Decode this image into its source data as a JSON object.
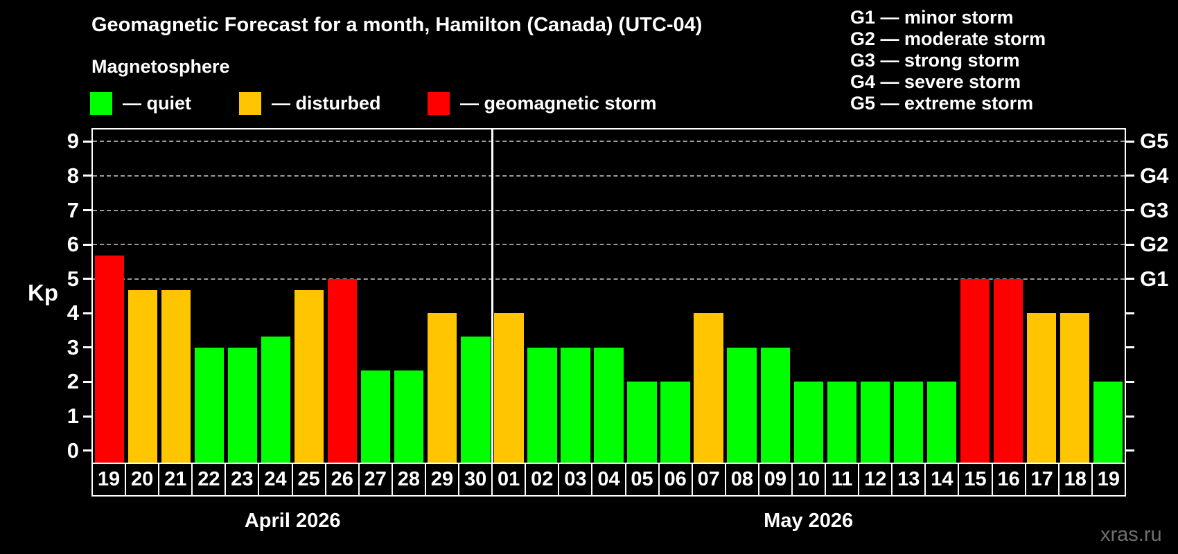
{
  "header": {
    "title": "Geomagnetic Forecast for a month, Hamilton (Canada) (UTC-04)"
  },
  "legend": {
    "title": "Magnetosphere",
    "colors": {
      "quiet": "#00ff00",
      "disturbed": "#ffc600",
      "storm": "#ff0000"
    },
    "items": [
      {
        "status": "quiet",
        "label": "— quiet"
      },
      {
        "status": "disturbed",
        "label": "— disturbed"
      },
      {
        "status": "storm",
        "label": "— geomagnetic storm"
      }
    ]
  },
  "g_legend": {
    "lines": [
      "G1 — minor storm",
      "G2 — moderate storm",
      "G3 — strong storm",
      "G4 — severe storm",
      "G5 — extreme storm"
    ]
  },
  "watermark": "xras.ru",
  "chart_data": {
    "type": "bar",
    "title": "Geomagnetic Forecast for a month, Hamilton (Canada) (UTC-04)",
    "xlabel": "",
    "ylabel": "Kp",
    "ylim": [
      0,
      9
    ],
    "y_ticks": [
      0,
      1,
      2,
      3,
      4,
      5,
      6,
      7,
      8,
      9
    ],
    "grid": "dashed horizontal lines at Kp 5 to 9 only",
    "legend_position": "top",
    "g_levels": [
      {
        "label": "G1",
        "kp": 5
      },
      {
        "label": "G2",
        "kp": 6
      },
      {
        "label": "G3",
        "kp": 7
      },
      {
        "label": "G4",
        "kp": 8
      },
      {
        "label": "G5",
        "kp": 9
      }
    ],
    "months": [
      {
        "label": "April 2026",
        "days": 12
      },
      {
        "label": "May 2026",
        "days": 19
      }
    ],
    "days": [
      {
        "month": "April 2026",
        "day": "19",
        "kp": 5.67,
        "status": "storm"
      },
      {
        "month": "April 2026",
        "day": "20",
        "kp": 4.67,
        "status": "disturbed"
      },
      {
        "month": "April 2026",
        "day": "21",
        "kp": 4.67,
        "status": "disturbed"
      },
      {
        "month": "April 2026",
        "day": "22",
        "kp": 3,
        "status": "quiet"
      },
      {
        "month": "April 2026",
        "day": "23",
        "kp": 3,
        "status": "quiet"
      },
      {
        "month": "April 2026",
        "day": "24",
        "kp": 3.33,
        "status": "quiet"
      },
      {
        "month": "April 2026",
        "day": "25",
        "kp": 4.67,
        "status": "disturbed"
      },
      {
        "month": "April 2026",
        "day": "26",
        "kp": 5,
        "status": "storm"
      },
      {
        "month": "April 2026",
        "day": "27",
        "kp": 2.33,
        "status": "quiet"
      },
      {
        "month": "April 2026",
        "day": "28",
        "kp": 2.33,
        "status": "quiet"
      },
      {
        "month": "April 2026",
        "day": "29",
        "kp": 4,
        "status": "disturbed"
      },
      {
        "month": "April 2026",
        "day": "30",
        "kp": 3.33,
        "status": "quiet"
      },
      {
        "month": "May 2026",
        "day": "01",
        "kp": 4,
        "status": "disturbed"
      },
      {
        "month": "May 2026",
        "day": "02",
        "kp": 3,
        "status": "quiet"
      },
      {
        "month": "May 2026",
        "day": "03",
        "kp": 3,
        "status": "quiet"
      },
      {
        "month": "May 2026",
        "day": "04",
        "kp": 3,
        "status": "quiet"
      },
      {
        "month": "May 2026",
        "day": "05",
        "kp": 2,
        "status": "quiet"
      },
      {
        "month": "May 2026",
        "day": "06",
        "kp": 2,
        "status": "quiet"
      },
      {
        "month": "May 2026",
        "day": "07",
        "kp": 4,
        "status": "disturbed"
      },
      {
        "month": "May 2026",
        "day": "08",
        "kp": 3,
        "status": "quiet"
      },
      {
        "month": "May 2026",
        "day": "09",
        "kp": 3,
        "status": "quiet"
      },
      {
        "month": "May 2026",
        "day": "10",
        "kp": 2,
        "status": "quiet"
      },
      {
        "month": "May 2026",
        "day": "11",
        "kp": 2,
        "status": "quiet"
      },
      {
        "month": "May 2026",
        "day": "12",
        "kp": 2,
        "status": "quiet"
      },
      {
        "month": "May 2026",
        "day": "13",
        "kp": 2,
        "status": "quiet"
      },
      {
        "month": "May 2026",
        "day": "14",
        "kp": 2,
        "status": "quiet"
      },
      {
        "month": "May 2026",
        "day": "15",
        "kp": 5,
        "status": "storm"
      },
      {
        "month": "May 2026",
        "day": "16",
        "kp": 5,
        "status": "storm"
      },
      {
        "month": "May 2026",
        "day": "17",
        "kp": 4,
        "status": "disturbed"
      },
      {
        "month": "May 2026",
        "day": "18",
        "kp": 4,
        "status": "disturbed"
      },
      {
        "month": "May 2026",
        "day": "19",
        "kp": 2,
        "status": "quiet"
      }
    ]
  }
}
